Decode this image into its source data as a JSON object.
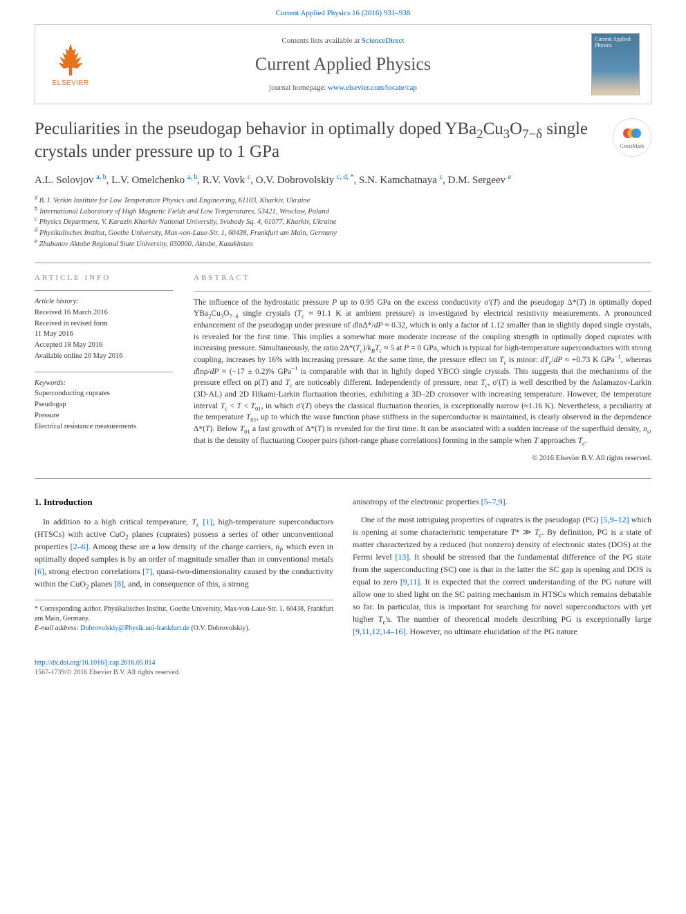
{
  "citation": "Current Applied Physics 16 (2016) 931–938",
  "banner": {
    "contents_prefix": "Contents lists available at ",
    "contents_link": "ScienceDirect",
    "journal_name": "Current Applied Physics",
    "homepage_prefix": "journal homepage: ",
    "homepage_link": "www.elsevier.com/locate/cap",
    "publisher": "ELSEVIER",
    "cover_title": "Current Applied Physics"
  },
  "title_html": "Peculiarities in the pseudogap behavior in optimally doped YBa<sub>2</sub>Cu<sub>3</sub>O<sub>7−δ</sub> single crystals under pressure up to 1 GPa",
  "crossmark_label": "CrossMark",
  "authors_html": "A.L. Solovjov <sup>a, b</sup>, L.V. Omelchenko <sup>a, b</sup>, R.V. Vovk <sup>c</sup>, O.V. Dobrovolskiy <sup>c, d, *</sup>, S.N. Kamchatnaya <sup>c</sup>, D.M. Sergeev <sup>e</sup>",
  "affiliations": [
    {
      "sup": "a",
      "text": "B. I. Verkin Institute for Low Temperature Physics and Engineering, 61103, Kharkiv, Ukraine"
    },
    {
      "sup": "b",
      "text": "International Laboratory of High Magnetic Fields and Low Temperatures, 53421, Wroclaw, Poland"
    },
    {
      "sup": "c",
      "text": "Physics Department, V. Karazin Kharkiv National University, Svobody Sq. 4, 61077, Kharkiv, Ukraine"
    },
    {
      "sup": "d",
      "text": "Physikalisches Institut, Goethe University, Max-von-Laue-Str. 1, 60438, Frankfurt am Main, Germany"
    },
    {
      "sup": "e",
      "text": "Zhubanov Aktobe Regional State University, 030000, Aktobe, Kazakhstan"
    }
  ],
  "article_info": {
    "heading": "ARTICLE INFO",
    "history_label": "Article history:",
    "history": [
      "Received 16 March 2016",
      "Received in revised form",
      "11 May 2016",
      "Accepted 18 May 2016",
      "Available online 20 May 2016"
    ],
    "keywords_label": "Keywords:",
    "keywords": [
      "Superconducting cuprates",
      "Pseudogap",
      "Pressure",
      "Electrical resistance measurements"
    ]
  },
  "abstract": {
    "heading": "ABSTRACT",
    "body_html": "The influence of the hydrostatic pressure <i>P</i> up to 0.95 GPa on the excess conductivity σ′(<i>T</i>) and the pseudogap Δ*(<i>T</i>) in optimally doped YBa<sub>2</sub>Cu<sub>3</sub>O<sub>7−δ</sub> single crystals (<i>T<sub>c</sub></i> ≈ 91.1 K at ambient pressure) is investigated by electrical resistivity measurements. A pronounced enhancement of the pseudogap under pressure of <i>d</i>lnΔ*/<i>dP</i> ≈ 0.32, which is only a factor of 1.12 smaller than in slightly doped single crystals, is revealed for the first time. This implies a somewhat more moderate increase of the coupling strength in optimally doped cuprates with increasing pressure. Simultaneously, the ratio 2Δ*(<i>T<sub>c</sub></i>)/<i>k<sub>B</sub>T<sub>c</sub></i> ≈ 5 at <i>P</i> = 0 GPa, which is typical for high-temperature superconductors with strong coupling, increases by 16% with increasing pressure. At the same time, the pressure effect on <i>T<sub>c</sub></i> is minor: <i>dT<sub>c</sub></i>/<i>dP</i> ≈ +0.73 K GPa<sup>−1</sup>, whereas <i>d</i>lnρ/<i>dP</i> ≈ (−17 ± 0.2)% GPa<sup>−1</sup> is comparable with that in lightly doped YBCO single crystals. This suggests that the mechanisms of the pressure effect on ρ(<i>T</i>) and <i>T<sub>c</sub></i> are noticeably different. Independently of pressure, near <i>T<sub>c</sub></i>, σ′(<i>T</i>) is well described by the Aslamazov-Larkin (3D-AL) and 2D Hikami-Larkin fluctuation theories, exhibiting a 3D–2D crossover with increasing temperature. However, the temperature interval <i>T<sub>c</sub></i> &lt; <i>T</i> &lt; <i>T</i><sub>01</sub>, in which σ′(<i>T</i>) obeys the classical fluctuation theories, is exceptionally narrow (≈1.16 K). Nevertheless, a peculiarity at the temperature <i>T</i><sub>01</sub>, up to which the wave function phase stiffness in the superconductor is maintained, is clearly observed in the dependence Δ*(<i>T</i>). Below <i>T</i><sub>01</sub> a fast growth of Δ*(<i>T</i>) is revealed for the first time. It can be associated with a sudden increase of the superfluid density, <i>n<sub>s</sub></i>, that is the density of fluctuating Cooper pairs (short-range phase correlations) forming in the sample when <i>T</i> approaches <i>T<sub>c</sub></i>.",
    "copyright": "© 2016 Elsevier B.V. All rights reserved."
  },
  "intro": {
    "heading": "1. Introduction",
    "p1_html": "In addition to a high critical temperature, <i>T<sub>c</sub></i> <a class='ref' href='#'>[1]</a>, high-temperature superconductors (HTSCs) with active CuO<sub>2</sub> planes (cuprates) possess a series of other unconventional properties <a class='ref' href='#'>[2–6]</a>. Among these are a low density of the charge carriers, <i>n<sub>f</sub></i>, which even in optimally doped samples is by an order of magnitude smaller than in conventional metals <a class='ref' href='#'>[6]</a>, strong electron correlations <a class='ref' href='#'>[7]</a>, quasi-two-dimensionality caused by the conductivity within the CuO<sub>2</sub> planes <a class='ref' href='#'>[8]</a>, and, in consequence of this, a strong",
    "p2_html": "anisotropy of the electronic properties <a class='ref' href='#'>[5–7,9]</a>.",
    "p3_html": "One of the most intriguing properties of cuprates is the pseudogap (PG) <a class='ref' href='#'>[5,9–12]</a> which is opening at some characteristic temperature <i>T</i>* ≫ <i>T<sub>c</sub></i>. By definition, PG is a state of matter characterized by a reduced (but nonzero) density of electronic states (DOS) at the Fermi level <a class='ref' href='#'>[13]</a>. It should be stressed that the fundamental difference of the PG state from the superconducting (SC) one is that in the latter the SC gap is opening and DOS is equal to zero <a class='ref' href='#'>[9,11]</a>. It is expected that the correct understanding of the PG nature will allow one to shed light on the SC pairing mechanism in HTSCs which remains debatable so far. In particular, this is important for searching for novel superconductors with yet higher <i>T<sub>c</sub></i>'s. The number of theoretical models describing PG is exceptionally large <a class='ref' href='#'>[9,11,12,14–16]</a>. However, no ultimate elucidation of the PG nature"
  },
  "footnotes": {
    "corr": "* Corresponding author. Physikalisches Institut, Goethe University, Max-von-Laue-Str. 1, 60438, Frankfurt am Main, Germany.",
    "email_label": "E-mail address: ",
    "email": "Dobrovolskiy@Physik.uni-frankfurt.de",
    "email_who": " (O.V. Dobrovolskiy)."
  },
  "bottom": {
    "doi": "http://dx.doi.org/10.1016/j.cap.2016.05.014",
    "issn_line": "1567-1739/© 2016 Elsevier B.V. All rights reserved."
  },
  "colors": {
    "link": "#0066cc",
    "accent": "#e9711c",
    "muted": "#888"
  }
}
